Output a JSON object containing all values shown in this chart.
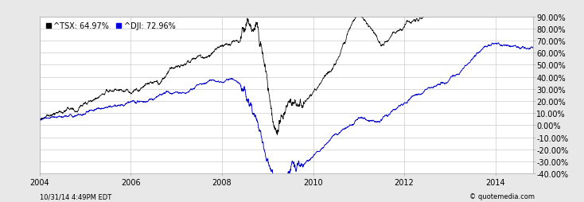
{
  "legend_labels": [
    "^TSX: 64.97%",
    "^DJI: 72.96%"
  ],
  "legend_colors": [
    "black",
    "blue"
  ],
  "x_tick_labels": [
    "2004",
    "2006",
    "2008",
    "2010",
    "2012",
    "2014"
  ],
  "ylim": [
    -40,
    90
  ],
  "yticks": [
    -40,
    -30,
    -20,
    -10,
    0,
    10,
    20,
    30,
    40,
    50,
    60,
    70,
    80,
    90
  ],
  "footer_left": "10/31/14 4:49PM EDT",
  "footer_right": "© quotemedia.com",
  "bg_color": "#e8e8e8",
  "plot_bg_color": "#ffffff",
  "grid_color": "#cccccc",
  "tsx_color": "#000000",
  "dji_color": "#0000cc"
}
